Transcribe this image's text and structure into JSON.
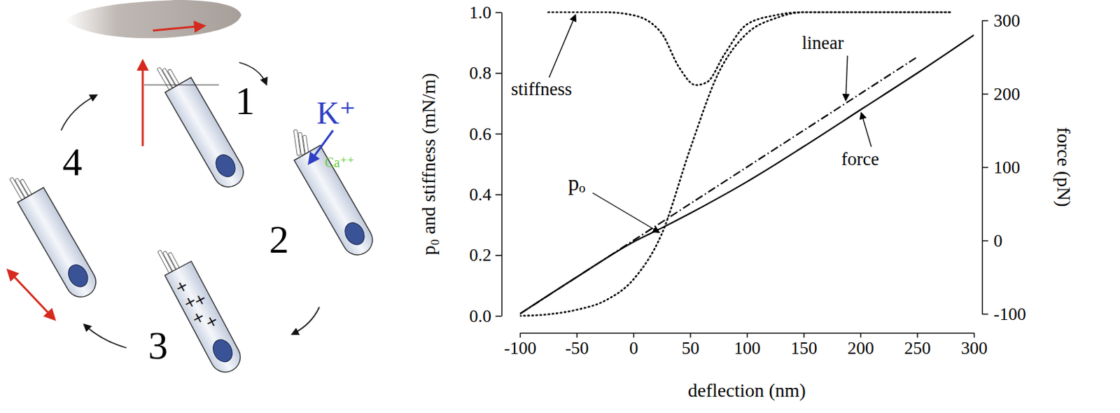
{
  "chart_data": {
    "type": "line",
    "x_label": "deflection (nm)",
    "y_label": "p₀ and stiffness (mN/m)",
    "y2_label": "force (pN)",
    "xlim": [
      -100,
      300
    ],
    "xticks": [
      -100,
      -50,
      0,
      50,
      100,
      150,
      200,
      250,
      300
    ],
    "ylim": [
      0,
      1
    ],
    "yticks": [
      {
        "value": 0,
        "label": "0.0"
      },
      0.2,
      0.4,
      0.6,
      0.8,
      {
        "value": 1,
        "label": "1.0"
      }
    ],
    "y2lim": [
      -100,
      300
    ],
    "y2ticks": [
      -100,
      0,
      100,
      200,
      300
    ],
    "grid": false,
    "series": [
      {
        "name": "stiffness",
        "color": "#000000",
        "line_style": "dotted",
        "x": [
          -75,
          -50,
          -25,
          0,
          25,
          40,
          55,
          65,
          80,
          100,
          125,
          150,
          200,
          280
        ],
        "values": [
          1,
          1,
          1,
          0.99,
          0.93,
          0.82,
          0.76,
          0.77,
          0.86,
          0.96,
          0.99,
          1,
          1,
          1
        ]
      },
      {
        "name": "pₒ",
        "color": "#000000",
        "line_style": "dotted",
        "x": [
          -100,
          -75,
          -50,
          -25,
          0,
          25,
          50,
          75,
          100,
          125,
          150,
          200,
          280
        ],
        "values": [
          0,
          0.005,
          0.02,
          0.05,
          0.12,
          0.27,
          0.55,
          0.8,
          0.93,
          0.98,
          1,
          1,
          1
        ]
      },
      {
        "name": "linear",
        "color": "#000000",
        "line_style": "dashdot",
        "axis": "y2",
        "x": [
          -100,
          250
        ],
        "values": [
          -100,
          250
        ]
      },
      {
        "name": "force",
        "color": "#000000",
        "line_style": "solid",
        "axis": "y2",
        "x": [
          -100,
          -50,
          0,
          25,
          50,
          75,
          100,
          150,
          200,
          250,
          300
        ],
        "values": [
          -100,
          -50,
          -2,
          17,
          37,
          58,
          80,
          128,
          178,
          228,
          280
        ]
      }
    ]
  },
  "diagram": {
    "steps": [
      "1",
      "2",
      "3",
      "4"
    ],
    "ions": [
      {
        "label": "K⁺",
        "color": "#2e3fc4"
      },
      {
        "label": "Ca⁺⁺",
        "color": "#66cc33"
      }
    ],
    "charges": [
      "+",
      "+",
      "+",
      "+",
      "+"
    ]
  }
}
